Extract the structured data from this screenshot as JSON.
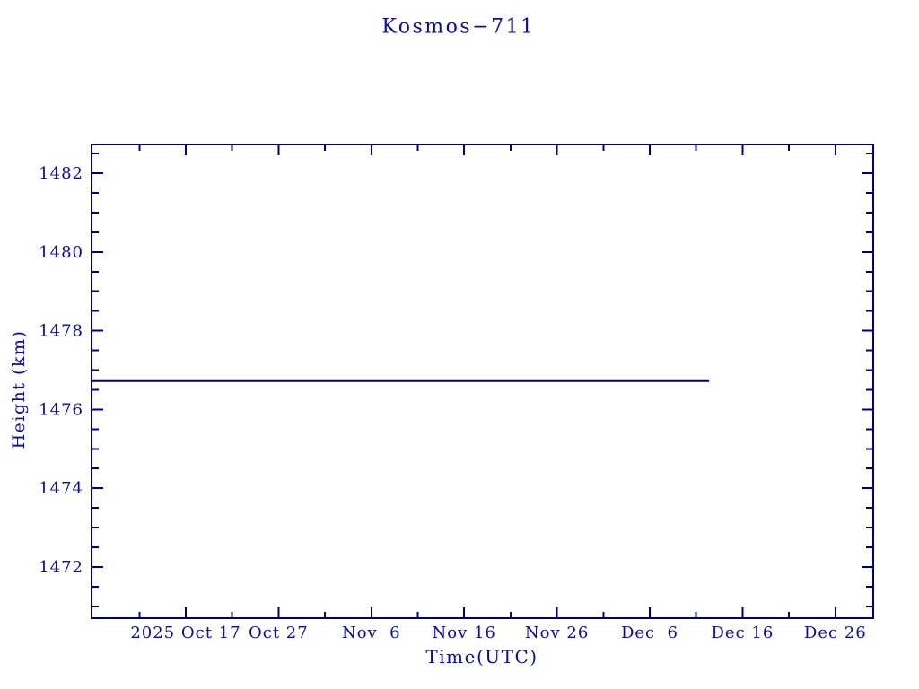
{
  "chart_data": {
    "type": "line",
    "title": "Kosmos−711",
    "xlabel": "Time(UTC)",
    "ylabel": "Height (km)",
    "x_axis": {
      "note_day_zero": "2025 Oct 17",
      "domain_days": [
        -10.15,
        74.08
      ],
      "major_ticks": [
        {
          "day": 0,
          "label": "2025 Oct 17"
        },
        {
          "day": 10,
          "label": "Oct 27"
        },
        {
          "day": 20,
          "label": "Nov  6"
        },
        {
          "day": 30,
          "label": "Nov 16"
        },
        {
          "day": 40,
          "label": "Nov 26"
        },
        {
          "day": 50,
          "label": "Dec  6"
        },
        {
          "day": 60,
          "label": "Dec 16"
        },
        {
          "day": 70,
          "label": "Dec 26"
        }
      ],
      "minor_tick_days": [
        -5,
        5,
        15,
        25,
        35,
        45,
        55,
        65
      ]
    },
    "y_axis": {
      "lim": [
        1470.7,
        1482.73
      ],
      "major_ticks": [
        1472,
        1474,
        1476,
        1478,
        1480,
        1482
      ],
      "minor_step": 0.5
    },
    "series": [
      {
        "name": "height",
        "points": [
          {
            "day": -10.15,
            "value": 1476.72
          },
          {
            "day": 56.4,
            "value": 1476.72
          }
        ]
      }
    ],
    "grid": false,
    "legend": false,
    "colors": {
      "text": "#0b0ba6",
      "axis": "#00007d",
      "line": "#00007d",
      "background": "#ffffff"
    }
  }
}
